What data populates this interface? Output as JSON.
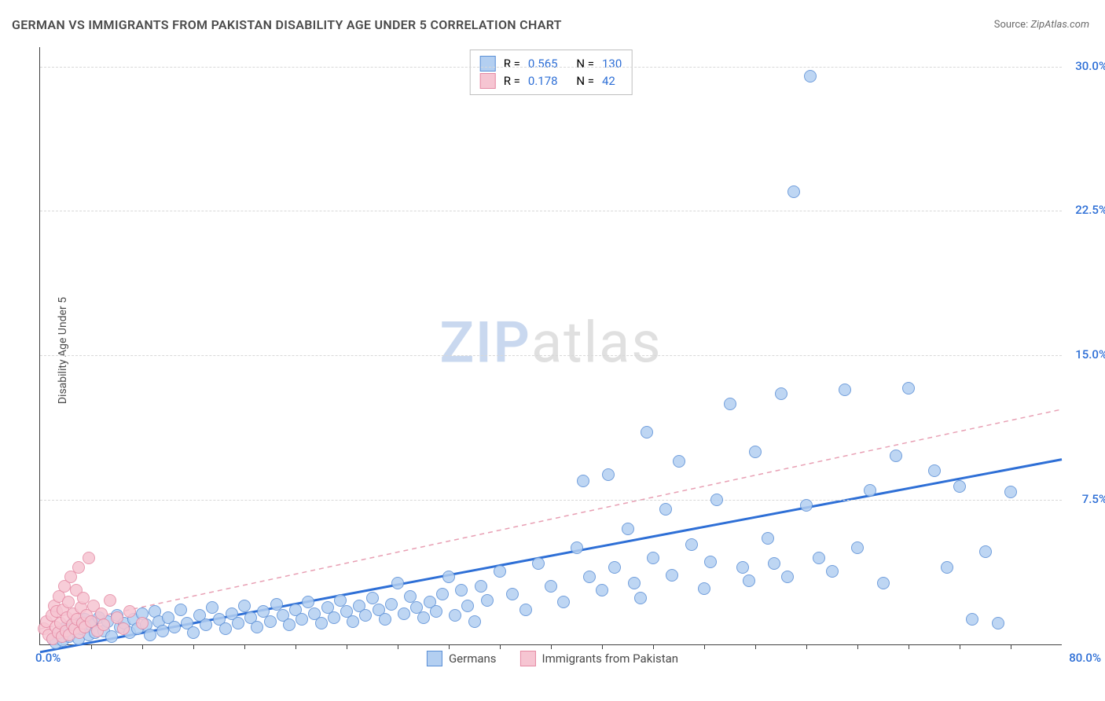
{
  "title": "GERMAN VS IMMIGRANTS FROM PAKISTAN DISABILITY AGE UNDER 5 CORRELATION CHART",
  "source_label": "Source: ",
  "source_value": "ZipAtlas.com",
  "ylabel": "Disability Age Under 5",
  "watermark": {
    "zip": "ZIP",
    "atlas": "atlas",
    "zip_color": "#c9d8ef",
    "atlas_color": "#e0e0e0"
  },
  "chart": {
    "type": "scatter",
    "background_color": "#ffffff",
    "grid_color": "#d8d8d8",
    "axis_color": "#404040",
    "xlim": [
      0,
      80
    ],
    "ylim": [
      0,
      31
    ],
    "x_origin_label": "0.0%",
    "x_max_label": "80.0%",
    "x_label_color": "#2e6fd6",
    "ytick_values": [
      7.5,
      15.0,
      22.5,
      30.0
    ],
    "ytick_labels": [
      "7.5%",
      "15.0%",
      "22.5%",
      "30.0%"
    ],
    "ytick_color": "#2e6fd6",
    "xtick_marks": [
      4,
      8,
      12,
      16,
      20,
      24,
      28,
      32,
      36,
      40,
      44,
      48,
      52,
      56,
      60,
      64,
      68,
      72,
      76
    ],
    "marker_radius": 8,
    "marker_border_width": 1.2,
    "series": [
      {
        "name": "germans",
        "label": "Germans",
        "fill": "#b3cff1",
        "stroke": "#5a8fd6",
        "trend": {
          "x1": 0,
          "y1": -0.4,
          "x2": 80,
          "y2": 9.6,
          "stroke": "#2e6fd6",
          "width": 3,
          "dash": "none"
        },
        "R": "0.565",
        "N": "130",
        "points": [
          [
            1.0,
            0.3
          ],
          [
            1.2,
            0.1
          ],
          [
            1.5,
            0.6
          ],
          [
            1.8,
            0.2
          ],
          [
            2.0,
            0.9
          ],
          [
            2.3,
            0.4
          ],
          [
            2.6,
            1.1
          ],
          [
            3.0,
            0.3
          ],
          [
            3.2,
            0.8
          ],
          [
            3.5,
            1.3
          ],
          [
            3.8,
            0.5
          ],
          [
            4.0,
            1.0
          ],
          [
            4.3,
            0.6
          ],
          [
            4.6,
            1.4
          ],
          [
            5.0,
            0.7
          ],
          [
            5.3,
            1.2
          ],
          [
            5.6,
            0.4
          ],
          [
            6.0,
            1.5
          ],
          [
            6.3,
            0.9
          ],
          [
            6.6,
            1.1
          ],
          [
            7.0,
            0.6
          ],
          [
            7.3,
            1.3
          ],
          [
            7.6,
            0.8
          ],
          [
            8.0,
            1.6
          ],
          [
            8.3,
            1.0
          ],
          [
            8.6,
            0.5
          ],
          [
            9.0,
            1.7
          ],
          [
            9.3,
            1.2
          ],
          [
            9.6,
            0.7
          ],
          [
            10.0,
            1.4
          ],
          [
            10.5,
            0.9
          ],
          [
            11.0,
            1.8
          ],
          [
            11.5,
            1.1
          ],
          [
            12.0,
            0.6
          ],
          [
            12.5,
            1.5
          ],
          [
            13.0,
            1.0
          ],
          [
            13.5,
            1.9
          ],
          [
            14.0,
            1.3
          ],
          [
            14.5,
            0.8
          ],
          [
            15.0,
            1.6
          ],
          [
            15.5,
            1.1
          ],
          [
            16.0,
            2.0
          ],
          [
            16.5,
            1.4
          ],
          [
            17.0,
            0.9
          ],
          [
            17.5,
            1.7
          ],
          [
            18.0,
            1.2
          ],
          [
            18.5,
            2.1
          ],
          [
            19.0,
            1.5
          ],
          [
            19.5,
            1.0
          ],
          [
            20.0,
            1.8
          ],
          [
            20.5,
            1.3
          ],
          [
            21.0,
            2.2
          ],
          [
            21.5,
            1.6
          ],
          [
            22.0,
            1.1
          ],
          [
            22.5,
            1.9
          ],
          [
            23.0,
            1.4
          ],
          [
            23.5,
            2.3
          ],
          [
            24.0,
            1.7
          ],
          [
            24.5,
            1.2
          ],
          [
            25.0,
            2.0
          ],
          [
            25.5,
            1.5
          ],
          [
            26.0,
            2.4
          ],
          [
            26.5,
            1.8
          ],
          [
            27.0,
            1.3
          ],
          [
            27.5,
            2.1
          ],
          [
            28.0,
            3.2
          ],
          [
            28.5,
            1.6
          ],
          [
            29.0,
            2.5
          ],
          [
            29.5,
            1.9
          ],
          [
            30.0,
            1.4
          ],
          [
            30.5,
            2.2
          ],
          [
            31.0,
            1.7
          ],
          [
            31.5,
            2.6
          ],
          [
            32.0,
            3.5
          ],
          [
            32.5,
            1.5
          ],
          [
            33.0,
            2.8
          ],
          [
            33.5,
            2.0
          ],
          [
            34.0,
            1.2
          ],
          [
            34.5,
            3.0
          ],
          [
            35.0,
            2.3
          ],
          [
            36.0,
            3.8
          ],
          [
            37.0,
            2.6
          ],
          [
            38.0,
            1.8
          ],
          [
            39.0,
            4.2
          ],
          [
            40.0,
            3.0
          ],
          [
            41.0,
            2.2
          ],
          [
            42.0,
            5.0
          ],
          [
            42.5,
            8.5
          ],
          [
            43.0,
            3.5
          ],
          [
            44.0,
            2.8
          ],
          [
            44.5,
            8.8
          ],
          [
            45.0,
            4.0
          ],
          [
            46.0,
            6.0
          ],
          [
            46.5,
            3.2
          ],
          [
            47.0,
            2.4
          ],
          [
            47.5,
            11.0
          ],
          [
            48.0,
            4.5
          ],
          [
            49.0,
            7.0
          ],
          [
            49.5,
            3.6
          ],
          [
            50.0,
            9.5
          ],
          [
            51.0,
            5.2
          ],
          [
            52.0,
            2.9
          ],
          [
            52.5,
            4.3
          ],
          [
            53.0,
            7.5
          ],
          [
            54.0,
            12.5
          ],
          [
            55.0,
            4.0
          ],
          [
            55.5,
            3.3
          ],
          [
            56.0,
            10.0
          ],
          [
            57.0,
            5.5
          ],
          [
            57.5,
            4.2
          ],
          [
            58.0,
            13.0
          ],
          [
            58.5,
            3.5
          ],
          [
            59.0,
            23.5
          ],
          [
            60.0,
            7.2
          ],
          [
            60.3,
            29.5
          ],
          [
            61.0,
            4.5
          ],
          [
            62.0,
            3.8
          ],
          [
            63.0,
            13.2
          ],
          [
            64.0,
            5.0
          ],
          [
            65.0,
            8.0
          ],
          [
            66.0,
            3.2
          ],
          [
            67.0,
            9.8
          ],
          [
            68.0,
            13.3
          ],
          [
            70.0,
            9.0
          ],
          [
            71.0,
            4.0
          ],
          [
            72.0,
            8.2
          ],
          [
            73.0,
            1.3
          ],
          [
            74.0,
            4.8
          ],
          [
            75.0,
            1.1
          ],
          [
            76.0,
            7.9
          ]
        ]
      },
      {
        "name": "immigrants-pakistan",
        "label": "Immigrants from Pakistan",
        "fill": "#f6c5d2",
        "stroke": "#e58aa4",
        "trend": {
          "x1": 0,
          "y1": 0.8,
          "x2": 80,
          "y2": 12.2,
          "stroke": "#e8a0b4",
          "width": 1.5,
          "dash": "6,5"
        },
        "R": "0.178",
        "N": "42",
        "points": [
          [
            0.3,
            0.8
          ],
          [
            0.5,
            1.2
          ],
          [
            0.7,
            0.5
          ],
          [
            0.9,
            1.5
          ],
          [
            1.0,
            0.3
          ],
          [
            1.1,
            2.0
          ],
          [
            1.2,
            0.9
          ],
          [
            1.3,
            1.7
          ],
          [
            1.4,
            0.6
          ],
          [
            1.5,
            2.5
          ],
          [
            1.6,
            1.1
          ],
          [
            1.7,
            0.4
          ],
          [
            1.8,
            1.8
          ],
          [
            1.9,
            3.0
          ],
          [
            2.0,
            0.7
          ],
          [
            2.1,
            1.4
          ],
          [
            2.2,
            2.2
          ],
          [
            2.3,
            0.5
          ],
          [
            2.4,
            3.5
          ],
          [
            2.5,
            1.0
          ],
          [
            2.6,
            1.6
          ],
          [
            2.7,
            0.8
          ],
          [
            2.8,
            2.8
          ],
          [
            2.9,
            1.3
          ],
          [
            3.0,
            4.0
          ],
          [
            3.1,
            0.6
          ],
          [
            3.2,
            1.9
          ],
          [
            3.3,
            1.1
          ],
          [
            3.4,
            2.4
          ],
          [
            3.5,
            0.9
          ],
          [
            3.6,
            1.5
          ],
          [
            3.8,
            4.5
          ],
          [
            4.0,
            1.2
          ],
          [
            4.2,
            2.0
          ],
          [
            4.5,
            0.7
          ],
          [
            4.8,
            1.6
          ],
          [
            5.0,
            1.0
          ],
          [
            5.5,
            2.3
          ],
          [
            6.0,
            1.4
          ],
          [
            6.5,
            0.8
          ],
          [
            7.0,
            1.7
          ],
          [
            8.0,
            1.1
          ]
        ]
      }
    ],
    "infobox": {
      "r_label": "R =",
      "n_label": "N =",
      "value_color": "#2e6fd6"
    },
    "legend_labels": [
      "Germans",
      "Immigrants from Pakistan"
    ]
  }
}
